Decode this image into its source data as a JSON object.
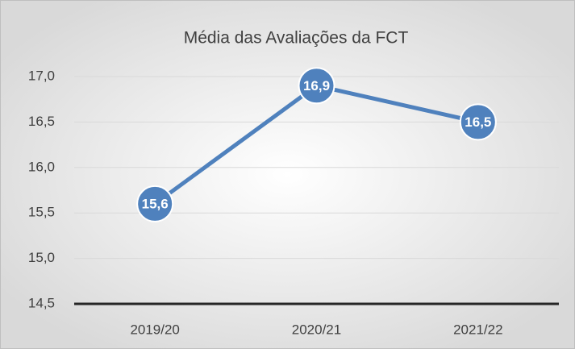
{
  "chart_data": {
    "type": "line",
    "title": "Média das Avaliações da FCT",
    "categories": [
      "2019/20",
      "2020/21",
      "2021/22"
    ],
    "values": [
      15.6,
      16.9,
      16.5
    ],
    "value_labels": [
      "15,6",
      "16,9",
      "16,5"
    ],
    "color": "#4f81bd",
    "ylim": [
      14.5,
      17.0
    ],
    "yticks": [
      {
        "value": 14.5,
        "label": "14,5"
      },
      {
        "value": 15.0,
        "label": "15,0"
      },
      {
        "value": 15.5,
        "label": "15,5"
      },
      {
        "value": 16.0,
        "label": "16,0"
      },
      {
        "value": 16.5,
        "label": "16,5"
      },
      {
        "value": 17.0,
        "label": "17,0"
      }
    ],
    "grid": true
  }
}
